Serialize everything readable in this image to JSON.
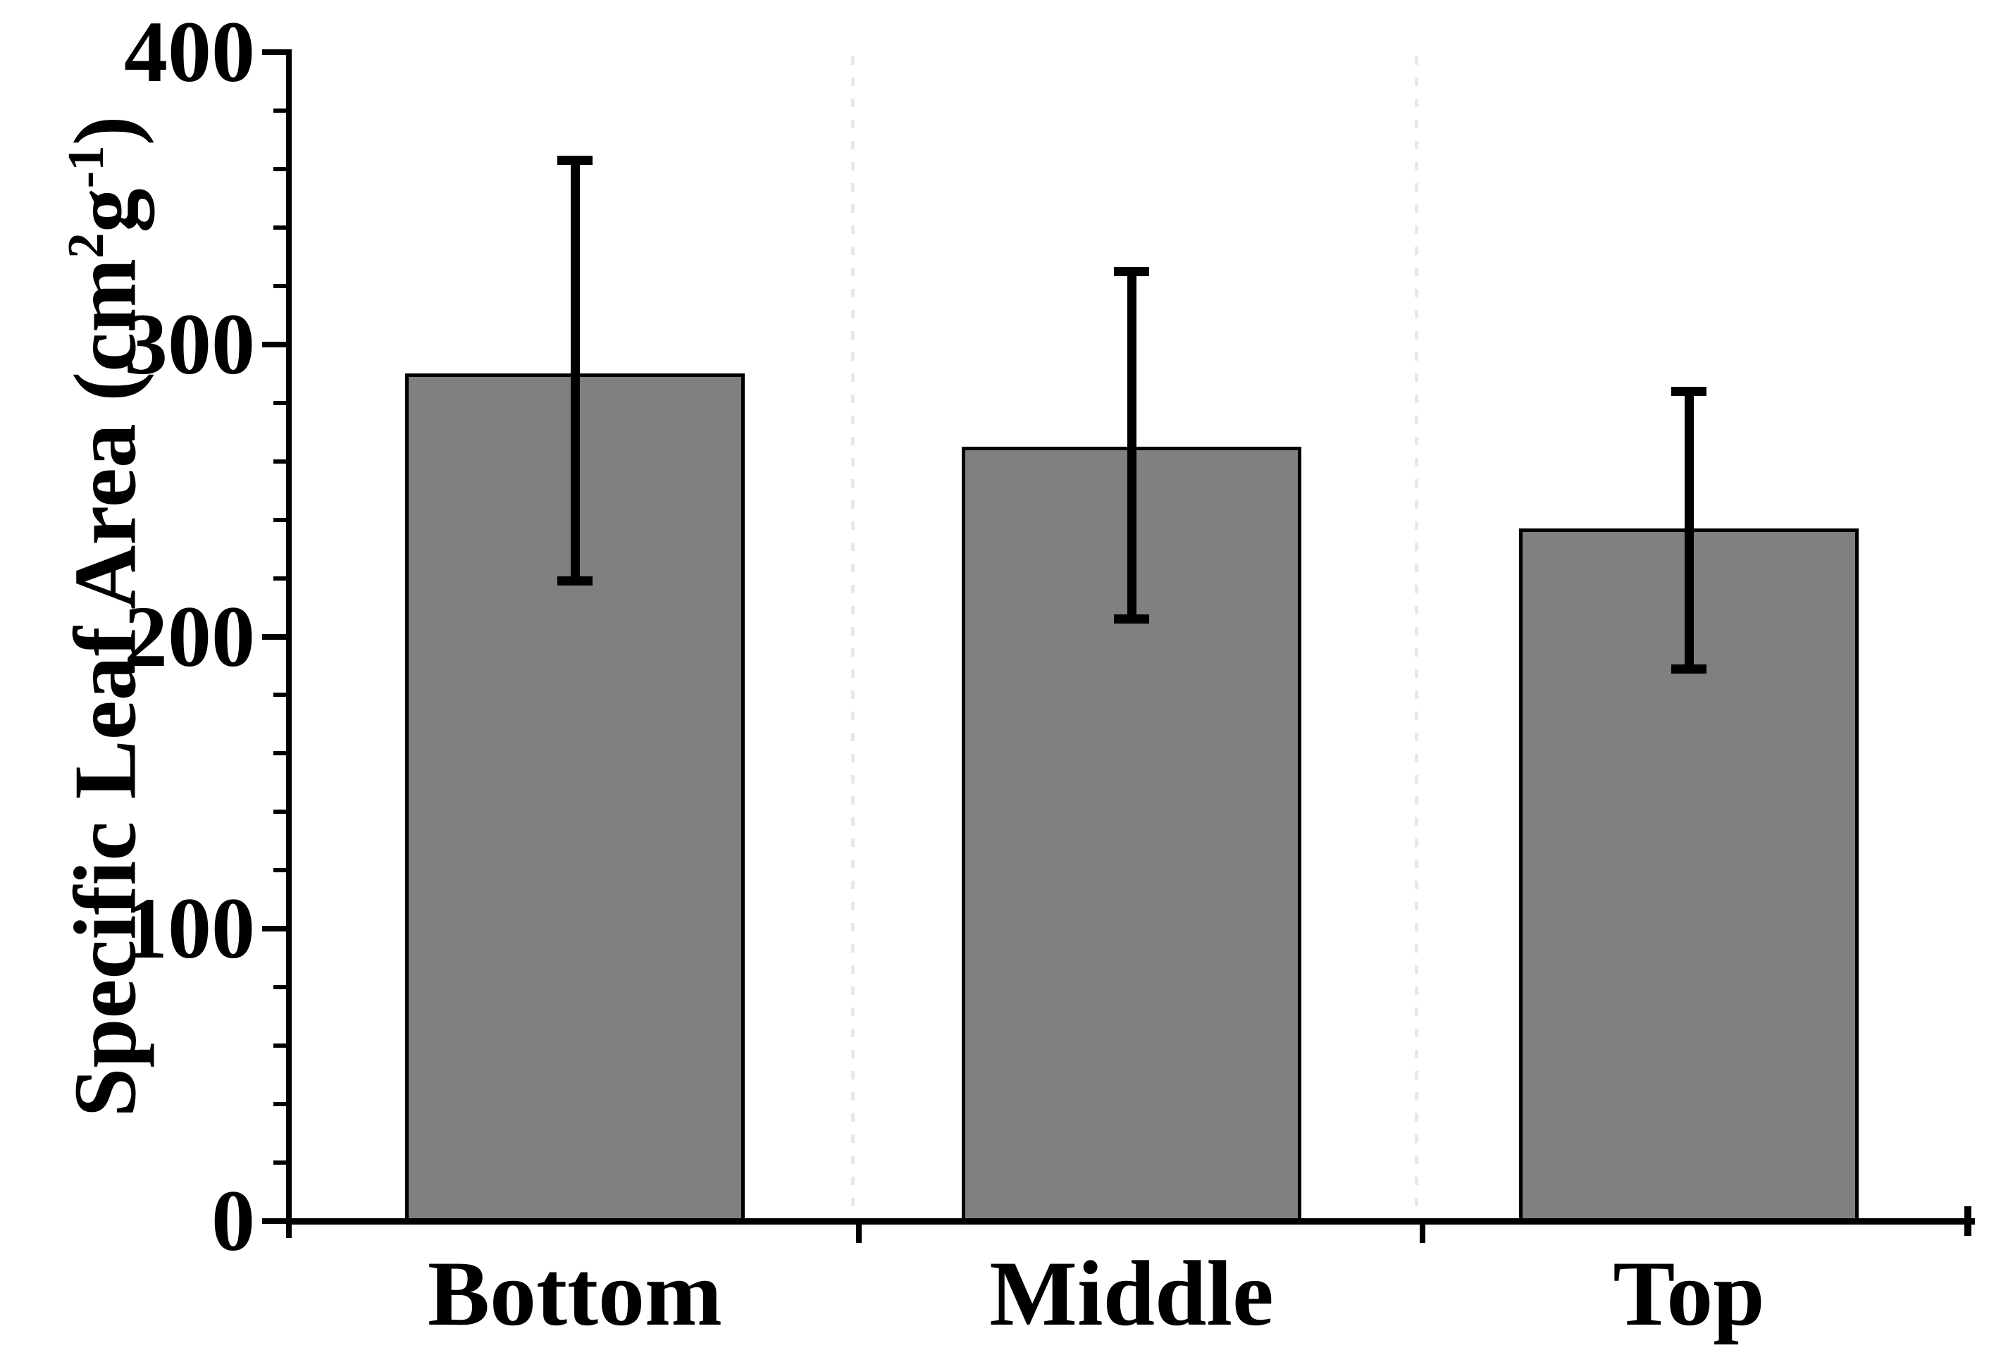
{
  "chart_data": {
    "type": "bar",
    "title": "",
    "xlabel": "",
    "ylabel": "Specific Leaf Area (cm2g-1)",
    "ylabel_parts": {
      "prefix": "Specific Leaf Area (cm",
      "sup1": "2",
      "mid": "g",
      "sup2": "-1",
      "suffix": ")"
    },
    "categories": [
      "Bottom",
      "Middle",
      "Top"
    ],
    "series": [
      {
        "name": "Specific Leaf Area",
        "values": [
          290,
          265,
          237
        ],
        "error_upper": [
          363,
          325,
          284
        ],
        "error_lower": [
          219,
          206,
          189
        ]
      }
    ],
    "ylim": [
      0,
      400
    ],
    "yticks": [
      0,
      100,
      200,
      300,
      400
    ],
    "ytick_labels": [
      "0",
      "100",
      "200",
      "300",
      "400"
    ],
    "minor_tick_step": 20,
    "grid": false,
    "legend": null,
    "bar_color": "#808080",
    "bar_border_color": "#000000",
    "error_bar_color": "#000000",
    "axis_color": "#000000",
    "separator_color": "#e8e8e8",
    "text_color": "#000000",
    "background": "#ffffff"
  }
}
